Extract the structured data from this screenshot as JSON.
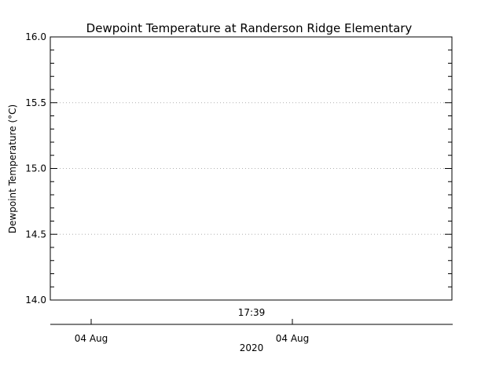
{
  "chart_data": {
    "type": "line",
    "title": "Dewpoint Temperature at Randerson Ridge Elementary",
    "ylabel": "Dewpoint Temperature (°C)",
    "xlabel": "",
    "ylim": [
      14.0,
      16.0
    ],
    "y_major_ticks": [
      14.0,
      14.5,
      15.0,
      15.5,
      16.0
    ],
    "y_tick_labels": [
      "14.0",
      "14.5",
      "15.0",
      "15.5",
      "16.0"
    ],
    "y_minor_step": 0.1,
    "y_grid": "dotted",
    "x_time_label": "17:39",
    "x_date_ticks": [
      "04 Aug",
      "04 Aug"
    ],
    "x_year_label": "2020",
    "series": [
      {
        "values": []
      }
    ],
    "colors": {
      "axis": "#000000",
      "grid": "#b0b0b0",
      "background": "#ffffff"
    }
  }
}
